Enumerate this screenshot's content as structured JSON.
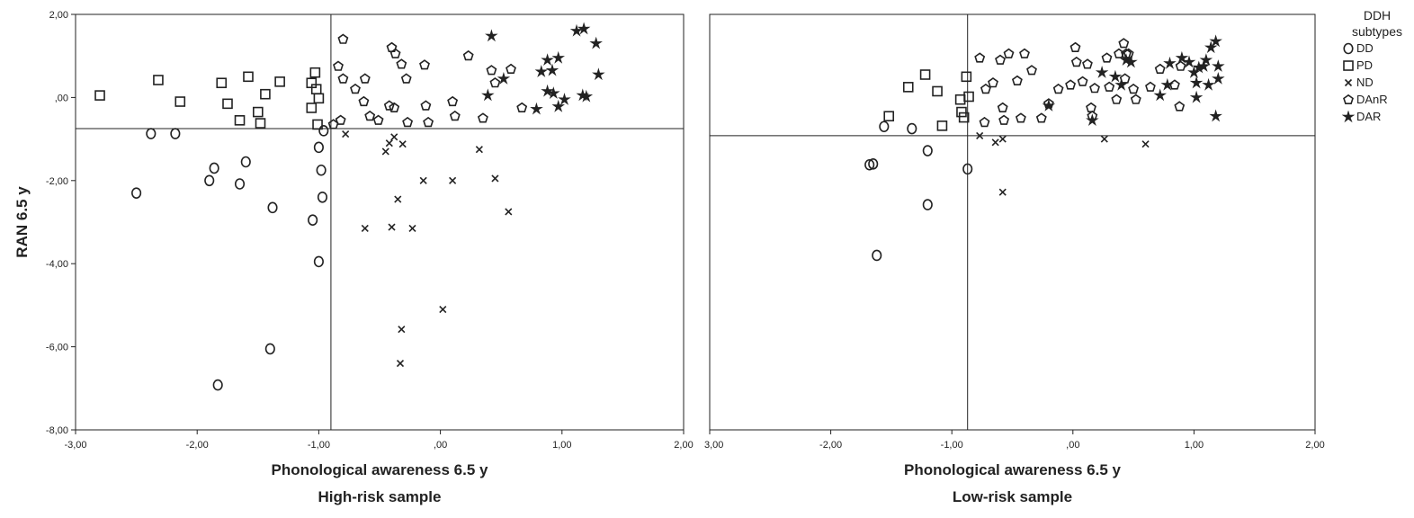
{
  "charts": [
    {
      "type": "scatter",
      "xlabel": "Phonological awareness 6.5 y",
      "caption": "High-risk sample",
      "ylabel": "RAN 6.5 y",
      "xlim": [
        -3,
        2
      ],
      "ylim": [
        -8,
        2
      ],
      "x_ticks": [
        "-3,00",
        "-2,00",
        "-1,00",
        ",00",
        "1,00",
        "2,00"
      ],
      "y_ticks": [
        "-8,00",
        "-6,00",
        "-4,00",
        "-2,00",
        ",00",
        "2,00"
      ],
      "ref_x": -0.9,
      "ref_y": -0.75,
      "series": [
        {
          "name": "DD",
          "marker": "circle",
          "points": [
            [
              -2.38,
              -0.87
            ],
            [
              -2.18,
              -0.87
            ],
            [
              -2.5,
              -2.3
            ],
            [
              -1.9,
              -2.0
            ],
            [
              -1.86,
              -1.7
            ],
            [
              -1.65,
              -2.08
            ],
            [
              -1.6,
              -1.55
            ],
            [
              -1.38,
              -2.65
            ],
            [
              -1.05,
              -2.95
            ],
            [
              -1.0,
              -1.2
            ],
            [
              -0.98,
              -1.75
            ],
            [
              -0.97,
              -2.4
            ],
            [
              -0.96,
              -0.8
            ],
            [
              -1.0,
              -3.95
            ],
            [
              -1.4,
              -6.05
            ],
            [
              -1.83,
              -6.92
            ]
          ]
        },
        {
          "name": "PD",
          "marker": "square",
          "points": [
            [
              -2.8,
              0.05
            ],
            [
              -2.32,
              0.42
            ],
            [
              -2.14,
              -0.1
            ],
            [
              -1.8,
              0.35
            ],
            [
              -1.75,
              -0.15
            ],
            [
              -1.58,
              0.5
            ],
            [
              -1.5,
              -0.35
            ],
            [
              -1.48,
              -0.62
            ],
            [
              -1.44,
              0.08
            ],
            [
              -1.65,
              -0.55
            ],
            [
              -1.32,
              0.38
            ],
            [
              -1.03,
              0.6
            ],
            [
              -1.06,
              0.35
            ],
            [
              -1.02,
              0.2
            ],
            [
              -1.06,
              -0.25
            ],
            [
              -1.0,
              -0.02
            ],
            [
              -1.01,
              -0.65
            ]
          ]
        },
        {
          "name": "ND",
          "marker": "cross",
          "points": [
            [
              -0.78,
              -0.88
            ],
            [
              -0.45,
              -1.3
            ],
            [
              -0.42,
              -1.1
            ],
            [
              -0.38,
              -0.95
            ],
            [
              -0.35,
              -2.45
            ],
            [
              -0.31,
              -1.12
            ],
            [
              -0.14,
              -2.0
            ],
            [
              0.1,
              -2.0
            ],
            [
              0.32,
              -1.25
            ],
            [
              0.45,
              -1.95
            ],
            [
              0.56,
              -2.75
            ],
            [
              -0.62,
              -3.15
            ],
            [
              -0.4,
              -3.12
            ],
            [
              -0.23,
              -3.15
            ],
            [
              -0.32,
              -5.58
            ],
            [
              0.02,
              -5.1
            ],
            [
              -0.33,
              -6.4
            ]
          ]
        },
        {
          "name": "DAnR",
          "marker": "pentagon",
          "points": [
            [
              -0.8,
              1.4
            ],
            [
              -0.84,
              0.75
            ],
            [
              -0.8,
              0.45
            ],
            [
              -0.88,
              -0.65
            ],
            [
              -0.82,
              -0.55
            ],
            [
              -0.7,
              0.2
            ],
            [
              -0.63,
              -0.1
            ],
            [
              -0.62,
              0.45
            ],
            [
              -0.58,
              -0.45
            ],
            [
              -0.51,
              -0.55
            ],
            [
              -0.4,
              1.2
            ],
            [
              -0.37,
              1.05
            ],
            [
              -0.38,
              -0.25
            ],
            [
              -0.32,
              0.8
            ],
            [
              -0.28,
              0.45
            ],
            [
              -0.27,
              -0.6
            ],
            [
              -0.13,
              0.78
            ],
            [
              -0.12,
              -0.2
            ],
            [
              -0.1,
              -0.6
            ],
            [
              0.1,
              -0.1
            ],
            [
              0.12,
              -0.45
            ],
            [
              0.23,
              1.0
            ],
            [
              0.35,
              -0.5
            ],
            [
              0.42,
              0.65
            ],
            [
              0.45,
              0.35
            ],
            [
              0.58,
              0.68
            ],
            [
              0.67,
              -0.25
            ],
            [
              -0.42,
              -0.2
            ]
          ]
        },
        {
          "name": "DAR",
          "marker": "star",
          "points": [
            [
              0.42,
              1.48
            ],
            [
              0.39,
              0.05
            ],
            [
              0.52,
              0.45
            ],
            [
              0.79,
              -0.28
            ],
            [
              0.83,
              0.62
            ],
            [
              0.88,
              0.9
            ],
            [
              0.92,
              0.65
            ],
            [
              0.97,
              0.95
            ],
            [
              0.88,
              0.15
            ],
            [
              0.93,
              0.1
            ],
            [
              0.97,
              -0.22
            ],
            [
              1.02,
              -0.05
            ],
            [
              1.12,
              1.6
            ],
            [
              1.18,
              1.65
            ],
            [
              1.28,
              1.3
            ],
            [
              1.3,
              0.55
            ],
            [
              1.17,
              0.05
            ],
            [
              1.2,
              0.02
            ]
          ]
        }
      ]
    },
    {
      "type": "scatter",
      "xlabel": "Phonological awareness 6.5 y",
      "caption": "Low-risk sample",
      "xlim": [
        -3,
        2
      ],
      "ylim": [
        -8,
        2
      ],
      "x_ticks": [
        "-2,00",
        "-1,00",
        ",00",
        "1,00",
        "2,00"
      ],
      "x_first_tick_fragment": "3,00",
      "ref_x": -0.87,
      "ref_y": -0.92,
      "series": [
        {
          "name": "DD",
          "marker": "circle",
          "points": [
            [
              -1.68,
              -1.62
            ],
            [
              -1.65,
              -1.6
            ],
            [
              -1.56,
              -0.7
            ],
            [
              -1.33,
              -0.75
            ],
            [
              -1.2,
              -1.28
            ],
            [
              -1.2,
              -2.58
            ],
            [
              -0.87,
              -1.72
            ],
            [
              -1.62,
              -3.8
            ]
          ]
        },
        {
          "name": "PD",
          "marker": "square",
          "points": [
            [
              -1.52,
              -0.45
            ],
            [
              -1.36,
              0.25
            ],
            [
              -1.22,
              0.55
            ],
            [
              -1.12,
              0.15
            ],
            [
              -1.08,
              -0.68
            ],
            [
              -0.93,
              -0.05
            ],
            [
              -0.92,
              -0.35
            ],
            [
              -0.88,
              0.5
            ],
            [
              -0.86,
              0.02
            ],
            [
              -0.9,
              -0.48
            ]
          ]
        },
        {
          "name": "ND",
          "marker": "cross",
          "points": [
            [
              -0.77,
              -0.92
            ],
            [
              -0.64,
              -1.08
            ],
            [
              -0.58,
              -1.0
            ],
            [
              -0.58,
              -2.28
            ],
            [
              0.26,
              -1.0
            ],
            [
              0.6,
              -1.12
            ]
          ]
        },
        {
          "name": "DAnR",
          "marker": "pentagon",
          "points": [
            [
              -0.77,
              0.95
            ],
            [
              -0.73,
              -0.6
            ],
            [
              -0.72,
              0.2
            ],
            [
              -0.66,
              0.35
            ],
            [
              -0.6,
              0.9
            ],
            [
              -0.58,
              -0.25
            ],
            [
              -0.57,
              -0.55
            ],
            [
              -0.53,
              1.05
            ],
            [
              -0.46,
              0.4
            ],
            [
              -0.43,
              -0.5
            ],
            [
              -0.4,
              1.05
            ],
            [
              -0.34,
              0.65
            ],
            [
              -0.26,
              -0.5
            ],
            [
              -0.2,
              -0.15
            ],
            [
              -0.12,
              0.2
            ],
            [
              -0.02,
              0.3
            ],
            [
              0.02,
              1.2
            ],
            [
              0.03,
              0.85
            ],
            [
              0.08,
              0.38
            ],
            [
              0.12,
              0.8
            ],
            [
              0.16,
              -0.45
            ],
            [
              0.18,
              0.22
            ],
            [
              0.28,
              0.95
            ],
            [
              0.3,
              0.25
            ],
            [
              0.36,
              -0.05
            ],
            [
              0.38,
              1.05
            ],
            [
              0.42,
              1.3
            ],
            [
              0.43,
              0.45
            ],
            [
              0.46,
              1.05
            ],
            [
              0.5,
              0.2
            ],
            [
              0.52,
              -0.05
            ],
            [
              0.64,
              0.25
            ],
            [
              0.72,
              0.68
            ],
            [
              0.84,
              0.3
            ],
            [
              0.88,
              -0.22
            ],
            [
              0.89,
              0.75
            ],
            [
              0.44,
              1.05
            ],
            [
              0.15,
              -0.25
            ]
          ]
        },
        {
          "name": "DAR",
          "marker": "star",
          "points": [
            [
              -0.2,
              -0.2
            ],
            [
              0.24,
              0.6
            ],
            [
              0.35,
              0.5
            ],
            [
              0.4,
              0.3
            ],
            [
              0.44,
              0.9
            ],
            [
              0.48,
              0.85
            ],
            [
              0.72,
              0.05
            ],
            [
              0.78,
              0.3
            ],
            [
              0.8,
              0.82
            ],
            [
              0.9,
              0.95
            ],
            [
              0.96,
              0.85
            ],
            [
              1.0,
              0.6
            ],
            [
              1.02,
              0.35
            ],
            [
              1.02,
              0.0
            ],
            [
              1.04,
              0.72
            ],
            [
              1.08,
              0.75
            ],
            [
              1.1,
              0.9
            ],
            [
              1.12,
              0.3
            ],
            [
              1.14,
              1.2
            ],
            [
              1.18,
              1.35
            ],
            [
              1.2,
              0.75
            ],
            [
              1.2,
              0.45
            ],
            [
              1.18,
              -0.45
            ],
            [
              0.16,
              -0.55
            ]
          ]
        }
      ]
    }
  ],
  "legend": {
    "title_line1": "DDH",
    "title_line2": "subtypes",
    "items": [
      {
        "label": "DD",
        "marker": "circle"
      },
      {
        "label": "PD",
        "marker": "square"
      },
      {
        "label": "ND",
        "marker": "cross"
      },
      {
        "label": "DAnR",
        "marker": "pentagon"
      },
      {
        "label": "DAR",
        "marker": "star"
      }
    ]
  }
}
